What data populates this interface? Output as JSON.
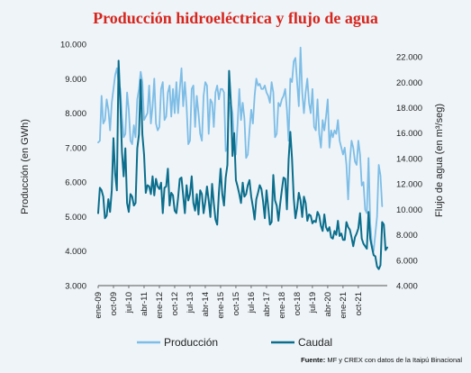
{
  "chart_data": {
    "type": "line",
    "title": "Producción hidroeléctrica y flujo de agua",
    "ylabel_left": "Producción (en GWh)",
    "ylabel_right": "Flujo de agua (en m³/seg)",
    "left_ticks": [
      "3.000",
      "4.000",
      "5.000",
      "6.000",
      "7.000",
      "8.000",
      "9.000",
      "10.000"
    ],
    "right_ticks": [
      "4.000",
      "6.000",
      "8.000",
      "10.000",
      "12.000",
      "14.000",
      "16.000",
      "18.000",
      "20.000",
      "22.000"
    ],
    "ylim_left": [
      3000,
      10000
    ],
    "ylim_right": [
      4000,
      23000
    ],
    "x_tick_labels": [
      "ene-09",
      "oct-09",
      "jul-10",
      "abr-11",
      "ene-12",
      "oct-12",
      "jul-13",
      "abr-14",
      "ene-15",
      "oct-15",
      "jul-16",
      "abr-17",
      "ene-18",
      "oct-18",
      "jul-19",
      "abr-20",
      "ene-21",
      "oct-21"
    ],
    "x_start": "2009-01",
    "legend_position": "bottom",
    "grid": false,
    "series": [
      {
        "name": "Producción",
        "axis": "left",
        "color": "#7dbde6",
        "values": [
          7150,
          7200,
          8500,
          7700,
          7800,
          8400,
          8100,
          7500,
          8300,
          8700,
          9100,
          9300,
          8900,
          8700,
          7900,
          7300,
          7400,
          8600,
          8100,
          7200,
          7100,
          7650,
          7300,
          8400,
          8700,
          9200,
          8900,
          7800,
          7900,
          8000,
          8800,
          7700,
          8200,
          9000,
          7700,
          7500,
          7600,
          8700,
          8900,
          7800,
          7900,
          8600,
          8800,
          7900,
          8700,
          8000,
          8900,
          8000,
          8700,
          9300,
          8200,
          8900,
          8200,
          7100,
          7200,
          8700,
          8800,
          7600,
          8500,
          8000,
          7400,
          7200,
          8500,
          8900,
          8800,
          7400,
          8400,
          8300,
          7600,
          8600,
          8800,
          8400,
          8700,
          8700,
          8600,
          6900,
          7000,
          8300,
          8300,
          8000,
          7100,
          6800,
          7700,
          8700,
          7800,
          8300,
          7850,
          6700,
          6800,
          7500,
          8100,
          7700,
          8500,
          9000,
          8800,
          8850,
          8700,
          8700,
          8800,
          8600,
          8500,
          8300,
          8900,
          8600,
          7300,
          7400,
          8300,
          8200,
          8400,
          8500,
          8700,
          8100,
          7200,
          9000,
          8900,
          9500,
          9600,
          8900,
          8200,
          9900,
          8600,
          8000,
          8600,
          9000,
          8300,
          8000,
          8700,
          7600,
          7500,
          8400,
          7400,
          7000,
          7800,
          7500,
          7900,
          8400,
          7000,
          7500,
          7300,
          7500,
          7400,
          7800,
          7200,
          7000,
          6800,
          7000,
          6500,
          5500,
          6600,
          7200,
          7000,
          6600,
          6500,
          7200,
          6800,
          5900,
          6000,
          5200,
          5100,
          6700,
          4800,
          4200,
          4000,
          4500,
          5000,
          6500,
          6200,
          5300
        ]
      },
      {
        "name": "Caudal",
        "axis": "right",
        "color": "#0b6e8c",
        "values": [
          9700,
          11700,
          11500,
          11000,
          9300,
          9500,
          10800,
          9800,
          11500,
          15600,
          12800,
          11500,
          21700,
          18500,
          14500,
          12600,
          14800,
          10500,
          9800,
          11200,
          11000,
          10300,
          10500,
          14800,
          15900,
          20200,
          15900,
          14300,
          11300,
          11900,
          11800,
          11200,
          12600,
          11100,
          12400,
          11800,
          11600,
          12100,
          9700,
          11700,
          11800,
          13200,
          10300,
          11300,
          11100,
          9900,
          9700,
          10900,
          12400,
          12500,
          11100,
          9700,
          11900,
          10700,
          11200,
          12600,
          10500,
          9900,
          11200,
          9600,
          11500,
          11200,
          9700,
          10600,
          11800,
          10700,
          9400,
          12000,
          10500,
          9200,
          8800,
          11300,
          13200,
          11200,
          10300,
          12500,
          13500,
          20900,
          18500,
          14200,
          16000,
          12300,
          11800,
          11200,
          10500,
          12100,
          11000,
          11200,
          11900,
          12300,
          11000,
          10200,
          9200,
          10800,
          11300,
          11900,
          11600,
          10600,
          9300,
          11500,
          10200,
          8800,
          9000,
          12700,
          10700,
          10300,
          9100,
          10400,
          11500,
          12500,
          12400,
          10000,
          13900,
          16100,
          14000,
          10900,
          9300,
          10100,
          11300,
          10700,
          9400,
          11000,
          10500,
          9100,
          9600,
          9500,
          8900,
          9100,
          9000,
          9800,
          9500,
          8700,
          8300,
          9600,
          8600,
          8300,
          8600,
          7800,
          7700,
          8300,
          8000,
          9100,
          7900,
          8100,
          7600,
          7600,
          9000,
          8600,
          8400,
          7800,
          7100,
          7800,
          8100,
          8500,
          9700,
          7700,
          7300,
          7100,
          6900,
          9800,
          7700,
          7000,
          6400,
          6300,
          5500,
          5300,
          5600,
          9000,
          8800,
          6800,
          7000
        ]
      }
    ],
    "source_label": "Fuente:",
    "source_text": "MF y CREX con datos de la Itaipú Binacional"
  }
}
